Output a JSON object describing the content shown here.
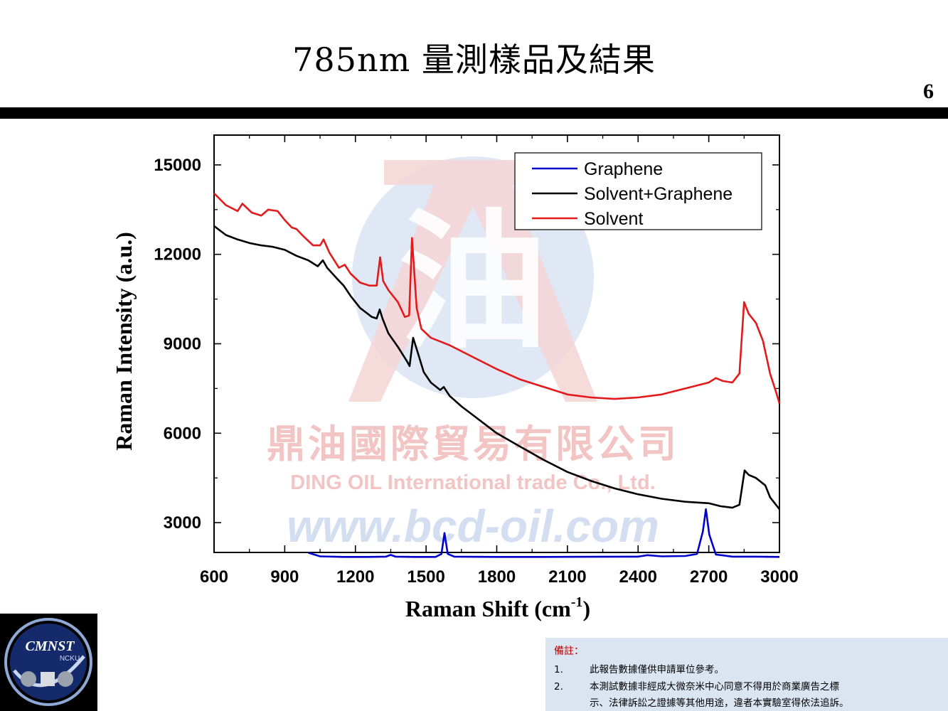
{
  "slide": {
    "title": "785nm 量測樣品及結果",
    "page_number": "6"
  },
  "watermark": {
    "glyph": "油",
    "company_zh": "鼎油國際貿易有限公司",
    "company_en": "DING OIL International trade Co., Ltd.",
    "website": "www.bcd-oil.com"
  },
  "logo": {
    "text": "CMNST",
    "subtext": "NCKU"
  },
  "note": {
    "heading": "備註：",
    "items": [
      {
        "num": "1.",
        "text": "此報告數據僅供申請單位參考。"
      },
      {
        "num": "2.",
        "text": "本測試數據非經成大微奈米中心同意不得用於商業廣告之標"
      }
    ],
    "continuation": "示、法律訴訟之證據等其他用途，違者本實驗室得依法追訴。"
  },
  "chart_data": {
    "type": "line",
    "xlabel": "Raman Shift (cm",
    "xlabel_sup": "-1",
    "xlabel_end": ")",
    "ylabel": "Raman Intensity (a.u.)",
    "xlim": [
      600,
      3000
    ],
    "ylim": [
      2000,
      16000
    ],
    "xticks": [
      600,
      900,
      1200,
      1500,
      1800,
      2100,
      2400,
      2700,
      3000
    ],
    "yticks": [
      3000,
      6000,
      9000,
      12000,
      15000
    ],
    "legend_position": "top-right",
    "colors": {
      "Graphene": "#0000cc",
      "Solvent+Graphene": "#000000",
      "Solvent": "#e31a1c"
    },
    "series": [
      {
        "name": "Graphene",
        "points": [
          [
            1000,
            1990
          ],
          [
            1050,
            1870
          ],
          [
            1150,
            1850
          ],
          [
            1250,
            1850
          ],
          [
            1330,
            1860
          ],
          [
            1350,
            1920
          ],
          [
            1370,
            1860
          ],
          [
            1450,
            1850
          ],
          [
            1540,
            1850
          ],
          [
            1565,
            1950
          ],
          [
            1578,
            2650
          ],
          [
            1592,
            1950
          ],
          [
            1620,
            1860
          ],
          [
            1800,
            1850
          ],
          [
            2000,
            1850
          ],
          [
            2200,
            1855
          ],
          [
            2400,
            1860
          ],
          [
            2440,
            1910
          ],
          [
            2500,
            1870
          ],
          [
            2600,
            1880
          ],
          [
            2650,
            1950
          ],
          [
            2675,
            2700
          ],
          [
            2688,
            3450
          ],
          [
            2702,
            2600
          ],
          [
            2730,
            1930
          ],
          [
            2800,
            1860
          ],
          [
            2900,
            1860
          ],
          [
            3000,
            1850
          ]
        ]
      },
      {
        "name": "Solvent+Graphene",
        "points": [
          [
            600,
            12950
          ],
          [
            650,
            12650
          ],
          [
            700,
            12500
          ],
          [
            750,
            12380
          ],
          [
            800,
            12300
          ],
          [
            850,
            12250
          ],
          [
            900,
            12150
          ],
          [
            950,
            11950
          ],
          [
            1000,
            11800
          ],
          [
            1040,
            11600
          ],
          [
            1062,
            11800
          ],
          [
            1080,
            11550
          ],
          [
            1120,
            11200
          ],
          [
            1150,
            10950
          ],
          [
            1180,
            10600
          ],
          [
            1220,
            10200
          ],
          [
            1270,
            9900
          ],
          [
            1290,
            9850
          ],
          [
            1303,
            10150
          ],
          [
            1315,
            9850
          ],
          [
            1340,
            9350
          ],
          [
            1380,
            8900
          ],
          [
            1420,
            8400
          ],
          [
            1430,
            8250
          ],
          [
            1445,
            9200
          ],
          [
            1465,
            8700
          ],
          [
            1490,
            8050
          ],
          [
            1520,
            7700
          ],
          [
            1560,
            7450
          ],
          [
            1575,
            7550
          ],
          [
            1600,
            7250
          ],
          [
            1650,
            6900
          ],
          [
            1700,
            6600
          ],
          [
            1750,
            6300
          ],
          [
            1800,
            6000
          ],
          [
            1900,
            5550
          ],
          [
            2000,
            5100
          ],
          [
            2100,
            4700
          ],
          [
            2200,
            4400
          ],
          [
            2300,
            4150
          ],
          [
            2400,
            3950
          ],
          [
            2500,
            3800
          ],
          [
            2600,
            3700
          ],
          [
            2700,
            3650
          ],
          [
            2750,
            3550
          ],
          [
            2800,
            3500
          ],
          [
            2830,
            3600
          ],
          [
            2852,
            4750
          ],
          [
            2870,
            4600
          ],
          [
            2900,
            4500
          ],
          [
            2940,
            4250
          ],
          [
            2960,
            3850
          ],
          [
            3000,
            3450
          ]
        ]
      },
      {
        "name": "Solvent",
        "points": [
          [
            600,
            14050
          ],
          [
            650,
            13650
          ],
          [
            700,
            13450
          ],
          [
            720,
            13700
          ],
          [
            760,
            13400
          ],
          [
            800,
            13300
          ],
          [
            830,
            13500
          ],
          [
            870,
            13450
          ],
          [
            900,
            13150
          ],
          [
            930,
            12900
          ],
          [
            950,
            12850
          ],
          [
            980,
            12600
          ],
          [
            1020,
            12300
          ],
          [
            1050,
            12300
          ],
          [
            1065,
            12500
          ],
          [
            1090,
            12050
          ],
          [
            1130,
            11550
          ],
          [
            1155,
            11650
          ],
          [
            1180,
            11350
          ],
          [
            1220,
            11050
          ],
          [
            1260,
            10950
          ],
          [
            1290,
            10950
          ],
          [
            1305,
            11900
          ],
          [
            1318,
            11100
          ],
          [
            1340,
            10800
          ],
          [
            1380,
            10400
          ],
          [
            1410,
            9900
          ],
          [
            1428,
            9950
          ],
          [
            1440,
            12550
          ],
          [
            1460,
            10200
          ],
          [
            1480,
            9500
          ],
          [
            1520,
            9200
          ],
          [
            1600,
            8950
          ],
          [
            1700,
            8550
          ],
          [
            1800,
            8150
          ],
          [
            1900,
            7800
          ],
          [
            2000,
            7550
          ],
          [
            2100,
            7300
          ],
          [
            2200,
            7200
          ],
          [
            2300,
            7150
          ],
          [
            2400,
            7200
          ],
          [
            2500,
            7300
          ],
          [
            2600,
            7500
          ],
          [
            2700,
            7700
          ],
          [
            2730,
            7850
          ],
          [
            2760,
            7750
          ],
          [
            2800,
            7700
          ],
          [
            2830,
            8000
          ],
          [
            2850,
            10400
          ],
          [
            2870,
            10000
          ],
          [
            2900,
            9700
          ],
          [
            2930,
            9100
          ],
          [
            2960,
            8000
          ],
          [
            2985,
            7400
          ],
          [
            3000,
            7000
          ]
        ]
      }
    ]
  }
}
